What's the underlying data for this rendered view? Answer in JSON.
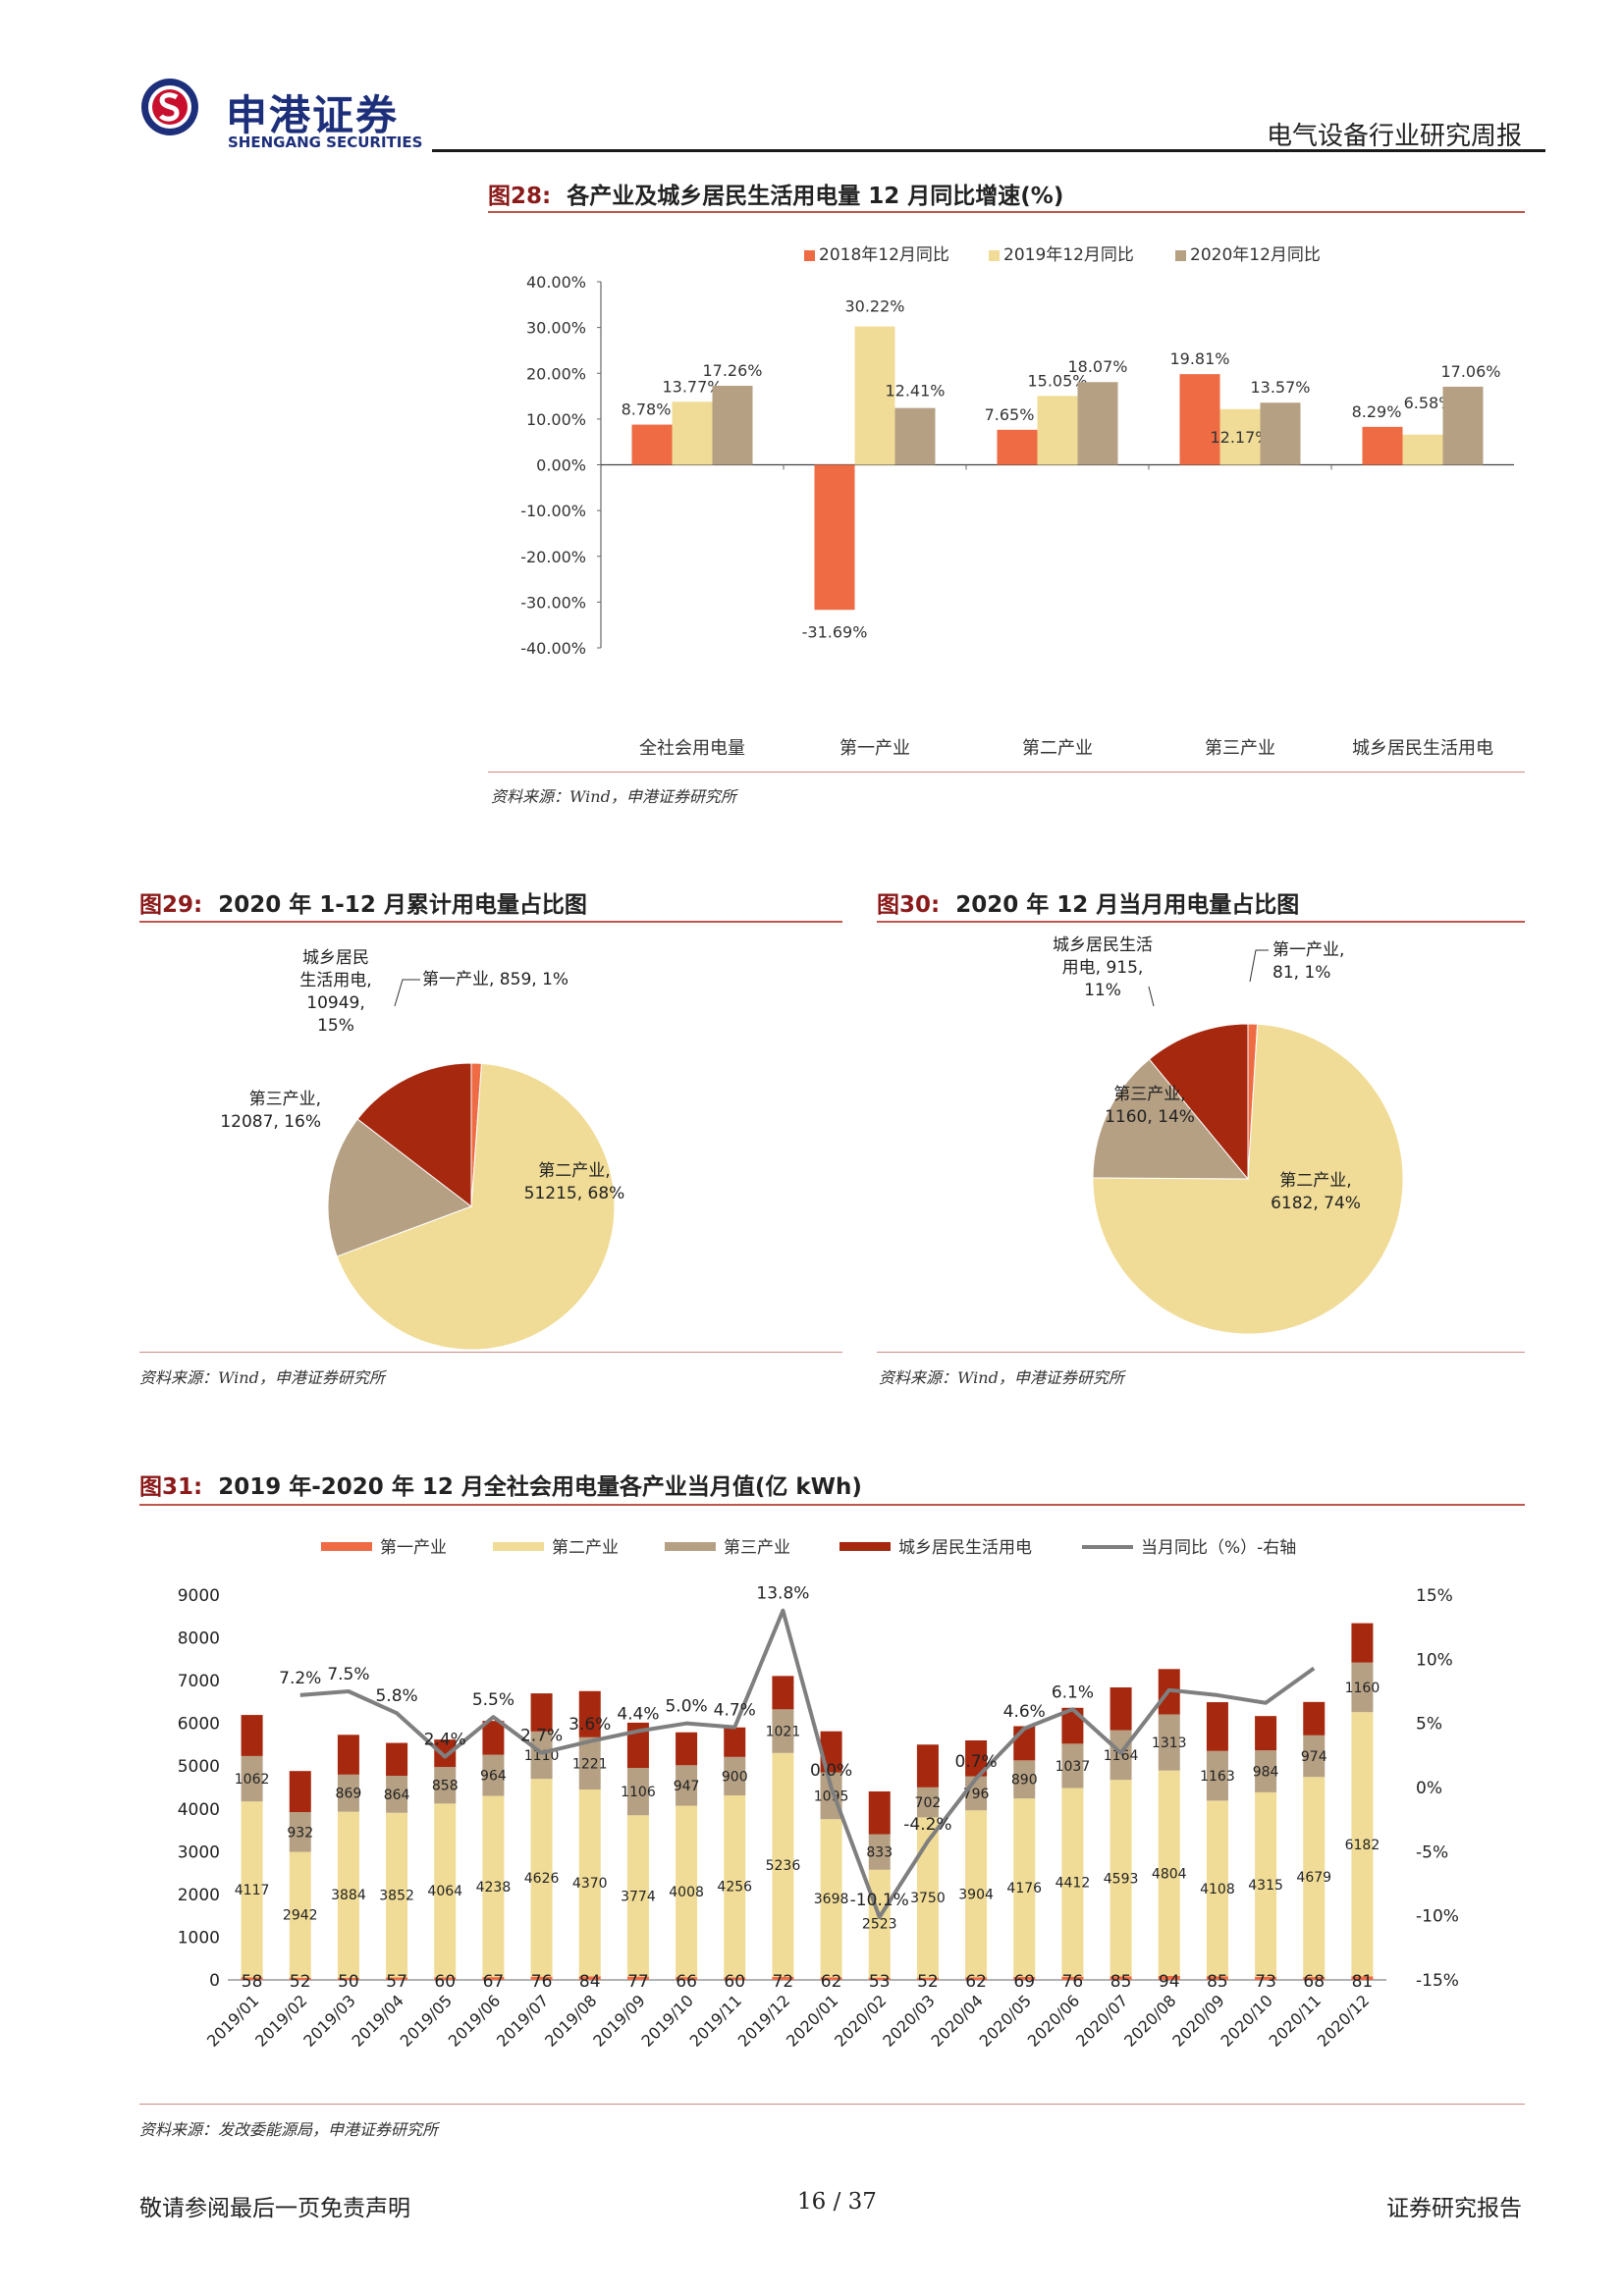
{
  "header": {
    "company_cn": "申港证券",
    "company_en": "SHENGANG SECURITIES",
    "report_type": "电气设备行业研究周报"
  },
  "colors": {
    "red_orange": "#EE6B44",
    "pale_yellow": "#F0DC96",
    "taupe": "#B5A084",
    "dark_red": "#A5280F",
    "line_grey": "#7F7F7F",
    "accent_rule": "#B2392E",
    "logo_blue": "#1D2F7A",
    "logo_red": "#C8102E"
  },
  "fig28": {
    "title_num": "图28:",
    "title_text": "各产业及城乡居民生活用电量 12 月同比增速(%)",
    "source": "资料来源：Wind，申港证券研究所",
    "chart_data": {
      "type": "bar",
      "categories": [
        "全社会用电量",
        "第一产业",
        "第二产业",
        "第三产业",
        "城乡居民生活用电"
      ],
      "series": [
        {
          "name": "2018年12月同比",
          "values": [
            8.78,
            -31.69,
            7.65,
            19.81,
            8.29
          ],
          "labels": [
            "8.78%",
            "-31.69%",
            "7.65%",
            "19.81%",
            "8.29%"
          ]
        },
        {
          "name": "2019年12月同比",
          "values": [
            13.77,
            30.22,
            15.05,
            12.17,
            6.58
          ],
          "labels": [
            "13.77%",
            "30.22%",
            "15.05%",
            "12.17%",
            "6.58%"
          ]
        },
        {
          "name": "2020年12月同比",
          "values": [
            17.26,
            12.41,
            18.07,
            13.57,
            17.06
          ],
          "labels": [
            "17.26%",
            "12.41%",
            "18.07%",
            "13.57%",
            "17.06%"
          ]
        }
      ],
      "yticks": [
        "40.00%",
        "30.00%",
        "20.00%",
        "10.00%",
        "0.00%",
        "-10.00%",
        "-20.00%",
        "-30.00%",
        "-40.00%"
      ],
      "ylim": [
        -40,
        40
      ],
      "legend_position": "top"
    }
  },
  "fig29": {
    "title_num": "图29:",
    "title_text": "2020 年 1-12 月累计用电量占比图",
    "source": "资料来源：Wind，申港证券研究所",
    "chart_data": {
      "type": "pie",
      "labels": [
        "第一产业",
        "第二产业",
        "第三产业",
        "城乡居民生活用电"
      ],
      "values": [
        859,
        51215,
        12087,
        10949
      ],
      "percents": [
        1,
        68,
        16,
        15
      ],
      "label_lines": [
        [
          "第一产业, 859, 1%"
        ],
        [
          "第二产业,",
          "51215, 68%"
        ],
        [
          "第三产业,",
          "12087, 16%"
        ],
        [
          "城乡居民",
          "生活用电,",
          "10949,",
          "15%"
        ]
      ]
    }
  },
  "fig30": {
    "title_num": "图30:",
    "title_text": "2020 年 12 月当月用电量占比图",
    "source": "资料来源：Wind，申港证券研究所",
    "chart_data": {
      "type": "pie",
      "labels": [
        "第一产业",
        "第二产业",
        "第三产业",
        "城乡居民生活用电"
      ],
      "values": [
        81,
        6182,
        1160,
        915
      ],
      "percents": [
        1,
        74,
        14,
        11
      ],
      "label_lines": [
        [
          "第一产业,",
          "81, 1%"
        ],
        [
          "第二产业,",
          "6182, 74%"
        ],
        [
          "第三产业,",
          "1160, 14%"
        ],
        [
          "城乡居民生活",
          "用电, 915,",
          "11%"
        ]
      ]
    }
  },
  "fig31": {
    "title_num": "图31:",
    "title_text": "2019 年-2020 年 12 月全社会用电量各产业当月值(亿 kWh)",
    "source": "资料来源：发改委能源局，申港证券研究所",
    "chart_data": {
      "type": "bar",
      "stacked": true,
      "categories": [
        "2019/01",
        "2019/02",
        "2019/03",
        "2019/04",
        "2019/05",
        "2019/06",
        "2019/07",
        "2019/08",
        "2019/09",
        "2019/10",
        "2019/11",
        "2019/12",
        "2020/01",
        "2020/02",
        "2020/03",
        "2020/04",
        "2020/05",
        "2020/06",
        "2020/07",
        "2020/08",
        "2020/09",
        "2020/10",
        "2020/11",
        "2020/12"
      ],
      "series": [
        {
          "name": "第一产业",
          "values": [
            58,
            52,
            50,
            57,
            60,
            67,
            76,
            84,
            77,
            66,
            60,
            72,
            62,
            53,
            52,
            62,
            69,
            76,
            85,
            94,
            85,
            73,
            68,
            81
          ]
        },
        {
          "name": "第二产业",
          "values": [
            4117,
            2942,
            3884,
            3852,
            4064,
            4238,
            4626,
            4370,
            3774,
            4008,
            4256,
            5236,
            3698,
            2523,
            3750,
            3904,
            4176,
            4412,
            4593,
            4804,
            4108,
            4315,
            4679,
            6182
          ]
        },
        {
          "name": "第三产业",
          "values": [
            1062,
            932,
            869,
            864,
            858,
            964,
            1110,
            1221,
            1106,
            947,
            900,
            1021,
            1095,
            833,
            702,
            796,
            890,
            1037,
            1164,
            1313,
            1163,
            984,
            974,
            1160
          ]
        },
        {
          "name": "城乡居民生活用电",
          "values": [
            960,
            960,
            930,
            770,
            640,
            790,
            890,
            1080,
            1060,
            770,
            690,
            780,
            960,
            1000,
            1000,
            840,
            800,
            840,
            1000,
            1060,
            1140,
            800,
            780,
            920
          ]
        },
        {
          "name": "当月同比（%）-右轴",
          "axis": "right",
          "values": [
            null,
            7.2,
            7.5,
            5.8,
            2.4,
            5.5,
            2.7,
            3.6,
            4.4,
            5.0,
            4.7,
            13.8,
            0.0,
            -10.1,
            -4.2,
            0.7,
            4.6,
            6.1,
            2.7,
            7.6,
            7.2,
            6.6,
            9.3,
            null
          ],
          "labels": [
            "",
            "7.2%",
            "7.5%",
            "5.8%",
            "2.4%",
            "5.5%",
            "2.7%",
            "3.6%",
            "4.4%",
            "5.0%",
            "4.7%",
            "13.8%",
            "0.0%",
            "-10.1%",
            "-4.2%",
            "0.7%",
            "4.6%",
            "6.1%",
            "",
            "",
            "",
            "",
            "",
            ""
          ]
        }
      ],
      "yticks_left": [
        "9000",
        "8000",
        "7000",
        "6000",
        "5000",
        "4000",
        "3000",
        "2000",
        "1000",
        "0"
      ],
      "yticks_right": [
        "15%",
        "10%",
        "5%",
        "0%",
        "-5%",
        "-10%",
        "-15%"
      ],
      "ylim_left": [
        0,
        9000
      ],
      "ylim_right": [
        -15,
        15
      ],
      "legend_position": "top"
    }
  },
  "footer": {
    "left": "敬请参阅最后一页免责声明",
    "center": "16 / 37",
    "right": "证券研究报告"
  }
}
